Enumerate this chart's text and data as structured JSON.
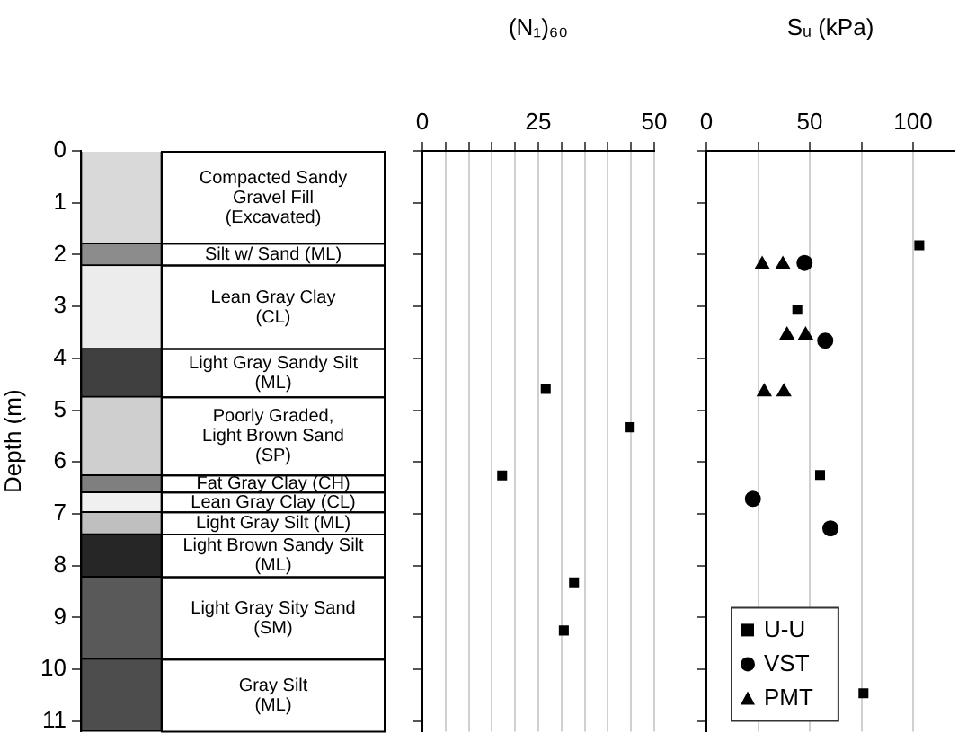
{
  "chart_data": [
    {
      "type": "bar",
      "stacked": true,
      "ylabel": "Depth (m)",
      "categories": [
        null
      ],
      "ylim": [
        11.2,
        0
      ],
      "yticks": [
        0,
        1,
        2,
        3,
        4,
        5,
        6,
        7,
        8,
        9,
        10,
        11
      ],
      "tick_labels": "y",
      "data_labels": false,
      "legend": false,
      "series": [
        {
          "name": "Compacted Sandy\nGravel Fill\n(Excavated)",
          "color": "#d9d9d9",
          "values": [
            1.79
          ]
        },
        {
          "name": "Silt w/ Sand (ML)",
          "color": "#8c8c8c",
          "values": [
            0.42
          ]
        },
        {
          "name": "Lean Gray Clay\n(CL)",
          "color": "#ececec",
          "values": [
            1.61
          ]
        },
        {
          "name": "Light Gray Sandy Silt\n(ML)",
          "color": "#404040",
          "values": [
            0.93
          ]
        },
        {
          "name": "Poorly Graded,\nLight Brown Sand\n(SP)",
          "color": "#cfcfcf",
          "values": [
            1.51
          ]
        },
        {
          "name": "Fat Gray Clay (CH)",
          "color": "#7f7f7f",
          "values": [
            0.33
          ]
        },
        {
          "name": "Lean Gray Clay (CL)",
          "color": "#f0f0f0",
          "values": [
            0.38
          ]
        },
        {
          "name": "Light Gray Silt (ML)",
          "color": "#bfbfbf",
          "values": [
            0.43
          ]
        },
        {
          "name": "Light Brown Sandy Silt\n(ML)",
          "color": "#262626",
          "values": [
            0.82
          ]
        },
        {
          "name": "Light Gray Sity Sand\n(SM)",
          "color": "#595959",
          "values": [
            1.59
          ]
        },
        {
          "name": "Gray Silt\n(ML)",
          "color": "#4d4d4d",
          "values": [
            1.39
          ]
        }
      ]
    },
    {
      "type": "scatter",
      "xlabel": "(N₁)₆₀",
      "xlim": [
        0,
        50
      ],
      "xticks": [
        0,
        {
          "value": 5,
          "label": null
        },
        {
          "value": 10,
          "label": null
        },
        {
          "value": 15,
          "label": null
        },
        {
          "value": 20,
          "label": null
        },
        25,
        {
          "value": 30,
          "label": null
        },
        {
          "value": 35,
          "label": null
        },
        {
          "value": 40,
          "label": null
        },
        {
          "value": 45,
          "label": null
        },
        50
      ],
      "ylim": [
        11.2,
        0
      ],
      "yticks": [
        {
          "value": 0,
          "label": null
        },
        {
          "value": 1,
          "label": null
        },
        {
          "value": 2,
          "label": null
        },
        {
          "value": 3,
          "label": null
        },
        {
          "value": 4,
          "label": null
        },
        {
          "value": 5,
          "label": null
        },
        {
          "value": 6,
          "label": null
        },
        {
          "value": 7,
          "label": null
        },
        {
          "value": 8,
          "label": null
        },
        {
          "value": 9,
          "label": null
        },
        {
          "value": 10,
          "label": null
        },
        {
          "value": 11,
          "label": null
        }
      ],
      "tick_labels": "x",
      "grid": "x",
      "legend": false,
      "series": [
        {
          "color": "#000000",
          "marker": "square",
          "x": [
            26.6,
            44.7,
            17.2,
            32.7,
            30.5
          ],
          "values": [
            4.59,
            5.33,
            6.26,
            8.32,
            9.25
          ]
        }
      ]
    },
    {
      "type": "scatter",
      "xlabel": "Sᵤ (kPa)",
      "xlim": [
        0,
        120
      ],
      "xticks": [
        0,
        {
          "value": 25,
          "label": null
        },
        50,
        {
          "value": 75,
          "label": null
        },
        100
      ],
      "ylim": [
        11.2,
        0
      ],
      "yticks": [
        {
          "value": 0,
          "label": null
        },
        {
          "value": 1,
          "label": null
        },
        {
          "value": 2,
          "label": null
        },
        {
          "value": 3,
          "label": null
        },
        {
          "value": 4,
          "label": null
        },
        {
          "value": 5,
          "label": null
        },
        {
          "value": 6,
          "label": null
        },
        {
          "value": 7,
          "label": null
        },
        {
          "value": 8,
          "label": null
        },
        {
          "value": 9,
          "label": null
        },
        {
          "value": 10,
          "label": null
        },
        {
          "value": 11,
          "label": null
        }
      ],
      "tick_labels": "x",
      "grid": "x",
      "legend": "bottom left",
      "series": [
        {
          "name": "U-U",
          "color": "#000000",
          "marker": "square",
          "x": [
            103,
            44,
            55,
            76
          ],
          "values": [
            1.82,
            3.06,
            6.25,
            10.46
          ]
        },
        {
          "name": "VST",
          "color": "#000000",
          "marker": "circle",
          "x": [
            47.5,
            57.5,
            22.5,
            60
          ],
          "values": [
            2.16,
            3.66,
            6.71,
            7.28
          ]
        },
        {
          "name": "PMT",
          "color": "#000000",
          "marker": "triangle",
          "x": [
            27,
            37,
            39,
            48,
            28,
            37.5
          ],
          "values": [
            2.19,
            2.19,
            3.55,
            3.55,
            4.65,
            4.65
          ]
        }
      ]
    }
  ]
}
